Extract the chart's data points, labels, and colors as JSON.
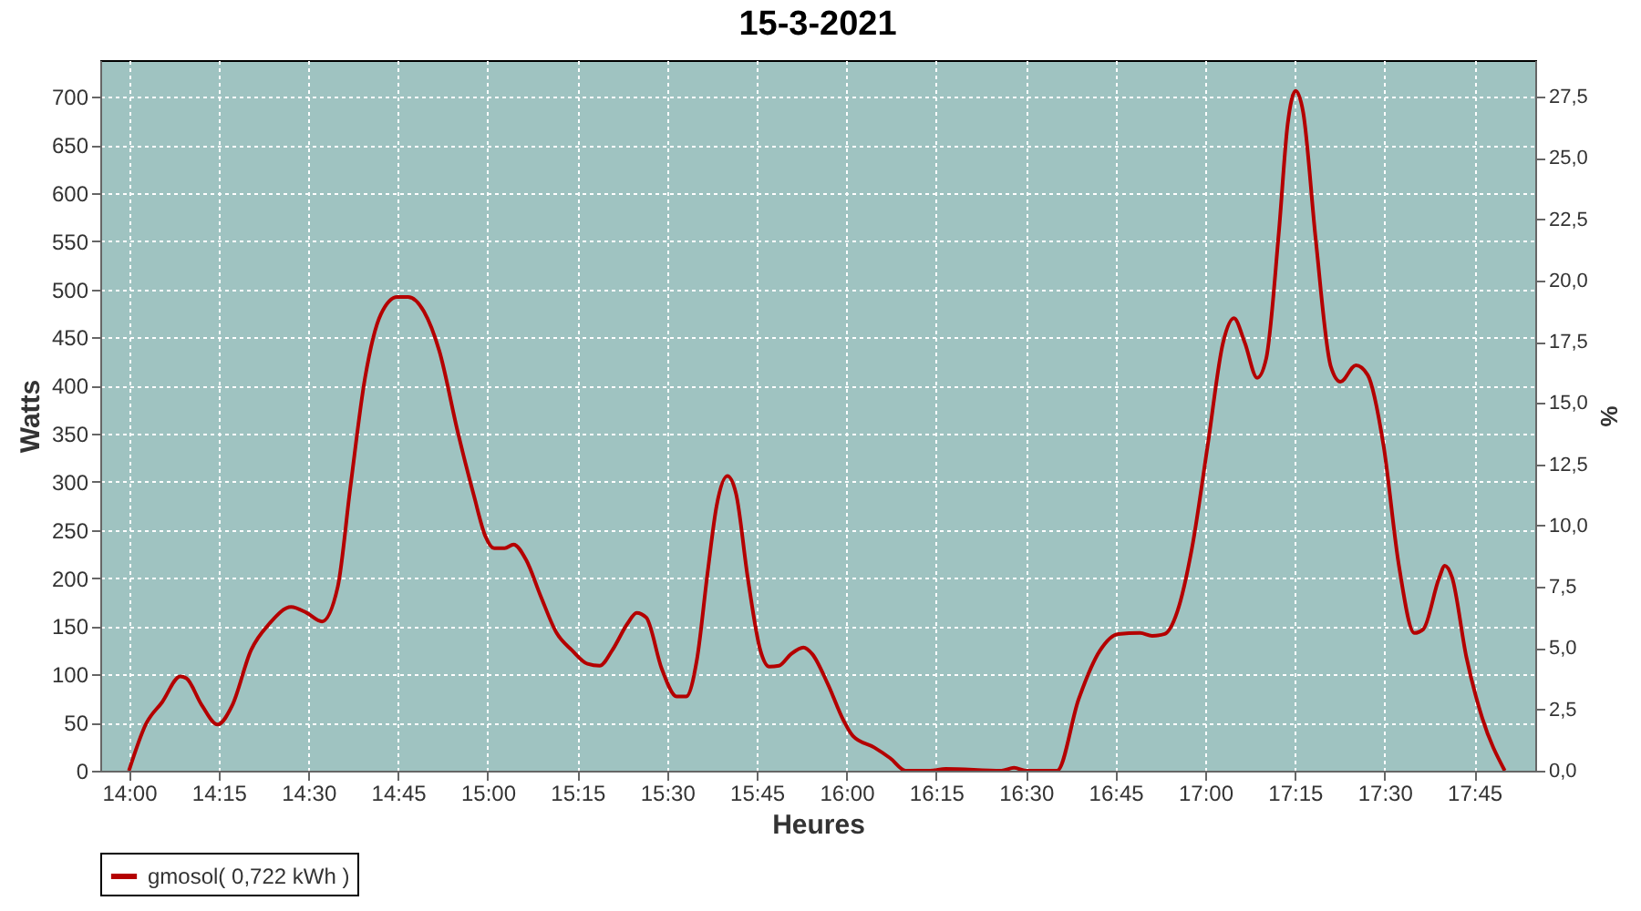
{
  "chart_data": {
    "type": "line",
    "title": "15-3-2021",
    "xlabel": "Heures",
    "ylabel": "Watts",
    "y2label": "%",
    "x": [
      14.0,
      14.048,
      14.092,
      14.143,
      14.16,
      14.203,
      14.247,
      14.288,
      14.34,
      14.392,
      14.452,
      14.495,
      14.538,
      14.582,
      14.617,
      14.658,
      14.702,
      14.748,
      14.778,
      14.822,
      14.865,
      14.917,
      14.962,
      14.993,
      15.018,
      15.047,
      15.072,
      15.107,
      15.148,
      15.192,
      15.235,
      15.278,
      15.312,
      15.347,
      15.39,
      15.415,
      15.442,
      15.485,
      15.527,
      15.553,
      15.583,
      15.613,
      15.638,
      15.668,
      15.692,
      15.725,
      15.76,
      15.785,
      15.812,
      15.845,
      15.88,
      15.905,
      15.948,
      15.992,
      16.018,
      16.078,
      16.122,
      16.165,
      16.233,
      16.277,
      16.432,
      16.467,
      16.5,
      16.587,
      16.647,
      16.707,
      16.758,
      16.818,
      16.852,
      16.887,
      16.922,
      16.963,
      17.007,
      17.05,
      17.08,
      17.11,
      17.145,
      17.17,
      17.205,
      17.23,
      17.252,
      17.273,
      17.308,
      17.35,
      17.377,
      17.42,
      17.453,
      17.497,
      17.54,
      17.583,
      17.608,
      17.652,
      17.668,
      17.688,
      17.728,
      17.772,
      17.835
    ],
    "series": [
      {
        "name": "gmosol( 0,722 kWh )",
        "color": "#b40000",
        "values": [
          0,
          49,
          71,
          98,
          96,
          68,
          48,
          68,
          125,
          153,
          170,
          164,
          155,
          191,
          294,
          408,
          474,
          492,
          492,
          477,
          436,
          351,
          285,
          244,
          231,
          231,
          235,
          219,
          181,
          143,
          125,
          111,
          109,
          125,
          153,
          164,
          159,
          106,
          77,
          77,
          115,
          206,
          275,
          306,
          288,
          200,
          125,
          108,
          109,
          121,
          128,
          121,
          90,
          52,
          36,
          24,
          13,
          0,
          0,
          2,
          0,
          3,
          0,
          0,
          74,
          125,
          142,
          143,
          140,
          142,
          165,
          231,
          338,
          445,
          470,
          445,
          408,
          428,
          558,
          672,
          706,
          684,
          552,
          420,
          404,
          421,
          411,
          338,
          213,
          143,
          147,
          200,
          213,
          201,
          118,
          55,
          0
        ]
      }
    ],
    "xlim": [
      13.92,
      17.92
    ],
    "ylim": [
      0,
      738
    ],
    "y2lim": [
      0,
      28.99
    ],
    "xticks": [
      {
        "value": 14,
        "label": "14:00"
      },
      {
        "value": 14.25,
        "label": "14:15"
      },
      {
        "value": 14.5,
        "label": "14:30"
      },
      {
        "value": 14.75,
        "label": "14:45"
      },
      {
        "value": 15,
        "label": "15:00"
      },
      {
        "value": 15.25,
        "label": "15:15"
      },
      {
        "value": 15.5,
        "label": "15:30"
      },
      {
        "value": 15.75,
        "label": "15:45"
      },
      {
        "value": 16,
        "label": "16:00"
      },
      {
        "value": 16.25,
        "label": "16:15"
      },
      {
        "value": 16.5,
        "label": "16:30"
      },
      {
        "value": 16.75,
        "label": "16:45"
      },
      {
        "value": 17,
        "label": "17:00"
      },
      {
        "value": 17.25,
        "label": "17:15"
      },
      {
        "value": 17.5,
        "label": "17:30"
      },
      {
        "value": 17.75,
        "label": "17:45"
      }
    ],
    "yticks": [
      0,
      50,
      100,
      150,
      200,
      250,
      300,
      350,
      400,
      450,
      500,
      550,
      600,
      650,
      700
    ],
    "y2ticks": [
      {
        "value": 0,
        "label": "0,0"
      },
      {
        "value": 2.5,
        "label": "2,5"
      },
      {
        "value": 5,
        "label": "5,0"
      },
      {
        "value": 7.5,
        "label": "7,5"
      },
      {
        "value": 10,
        "label": "10,0"
      },
      {
        "value": 12.5,
        "label": "12,5"
      },
      {
        "value": 15,
        "label": "15,0"
      },
      {
        "value": 17.5,
        "label": "17,5"
      },
      {
        "value": 20,
        "label": "20,0"
      },
      {
        "value": 22.5,
        "label": "22,5"
      },
      {
        "value": 25,
        "label": "25,0"
      },
      {
        "value": 27.5,
        "label": "27,5"
      }
    ],
    "grid": true,
    "legend": "bottom",
    "marker": "none",
    "line_style": "solid"
  }
}
